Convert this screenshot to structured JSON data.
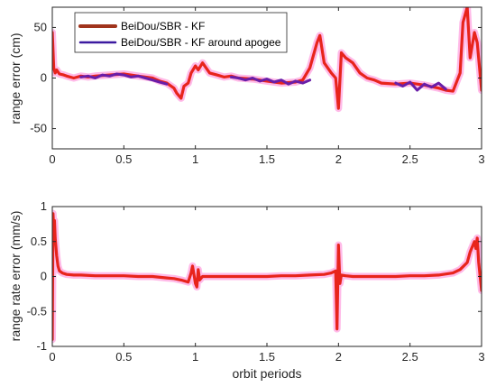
{
  "colors": {
    "series_main": "#e8241c",
    "series_apogee": "#6a1ea8",
    "legend_main_line": "#a0341c",
    "legend_apogee_line": "#3c1aa0",
    "glow": "#ff66cc",
    "axis": "#262626",
    "background": "#ffffff"
  },
  "chart_data": [
    {
      "type": "line",
      "title": "",
      "xlabel": "",
      "ylabel": "range error (cm)",
      "xlim": [
        0,
        3
      ],
      "ylim": [
        -70,
        70
      ],
      "xticks": [
        "0",
        "0.5",
        "1",
        "1.5",
        "2",
        "2.5",
        "3"
      ],
      "yticks": [
        "-50",
        "0",
        "50"
      ],
      "grid": false,
      "legend": {
        "placement": "top-left",
        "entries": [
          "BeiDou/SBR - KF",
          "BeiDou/SBR - KF around apogee"
        ]
      },
      "series": [
        {
          "name": "BeiDou/SBR - KF",
          "x": [
            0,
            0.01,
            0.02,
            0.03,
            0.05,
            0.08,
            0.1,
            0.15,
            0.2,
            0.25,
            0.3,
            0.4,
            0.5,
            0.6,
            0.7,
            0.75,
            0.8,
            0.85,
            0.87,
            0.9,
            0.92,
            0.95,
            0.97,
            1.0,
            1.02,
            1.05,
            1.1,
            1.15,
            1.2,
            1.25,
            1.3,
            1.4,
            1.5,
            1.6,
            1.7,
            1.75,
            1.8,
            1.85,
            1.87,
            1.9,
            1.95,
            1.98,
            2.0,
            2.02,
            2.05,
            2.1,
            2.15,
            2.2,
            2.25,
            2.3,
            2.4,
            2.5,
            2.6,
            2.7,
            2.75,
            2.8,
            2.85,
            2.87,
            2.9,
            2.92,
            2.95,
            2.97,
            3.0
          ],
          "y": [
            45,
            10,
            5,
            8,
            4,
            3,
            2,
            0,
            2,
            1,
            2,
            3,
            4,
            2,
            0,
            -3,
            -5,
            -10,
            -15,
            -20,
            -8,
            -5,
            5,
            12,
            8,
            15,
            5,
            3,
            1,
            2,
            0,
            -1,
            -3,
            -5,
            -4,
            -2,
            10,
            35,
            42,
            15,
            5,
            0,
            -30,
            25,
            20,
            15,
            5,
            0,
            -2,
            -5,
            -6,
            -5,
            -7,
            -10,
            -12,
            -13,
            5,
            55,
            70,
            20,
            45,
            35,
            -12
          ]
        },
        {
          "name": "BeiDou/SBR - KF around apogee",
          "segments": [
            {
              "x": [
                0.2,
                0.25,
                0.3,
                0.35,
                0.4,
                0.45,
                0.5,
                0.55,
                0.6,
                0.65,
                0.7,
                0.75,
                0.8
              ],
              "y": [
                1,
                2,
                0,
                3,
                2,
                4,
                3,
                1,
                2,
                0,
                -2,
                -4,
                -6
              ]
            },
            {
              "x": [
                1.25,
                1.3,
                1.35,
                1.4,
                1.45,
                1.5,
                1.55,
                1.6,
                1.65,
                1.7,
                1.75,
                1.8
              ],
              "y": [
                1,
                0,
                -2,
                0,
                -3,
                -1,
                -4,
                -2,
                -6,
                -3,
                -5,
                -2
              ]
            },
            {
              "x": [
                2.4,
                2.45,
                2.5,
                2.55,
                2.6,
                2.65,
                2.7,
                2.75
              ],
              "y": [
                -5,
                -8,
                -4,
                -12,
                -6,
                -9,
                -5,
                -11
              ]
            }
          ]
        }
      ]
    },
    {
      "type": "line",
      "title": "",
      "xlabel": "orbit periods",
      "ylabel": "range rate error (mm/s)",
      "xlim": [
        0,
        3
      ],
      "ylim": [
        -1,
        1
      ],
      "xticks": [
        "0",
        "0.5",
        "1",
        "1.5",
        "2",
        "2.5",
        "3"
      ],
      "yticks": [
        "-1",
        "-0.5",
        "0",
        "0.5",
        "1"
      ],
      "grid": false,
      "series": [
        {
          "name": "BeiDou/SBR - KF",
          "x": [
            0,
            0.005,
            0.01,
            0.015,
            0.02,
            0.03,
            0.04,
            0.05,
            0.07,
            0.1,
            0.15,
            0.2,
            0.3,
            0.4,
            0.5,
            0.6,
            0.7,
            0.8,
            0.85,
            0.9,
            0.95,
            0.97,
            0.98,
            1.0,
            1.01,
            1.02,
            1.03,
            1.05,
            1.1,
            1.2,
            1.3,
            1.4,
            1.5,
            1.6,
            1.7,
            1.8,
            1.9,
            1.95,
            1.98,
            1.99,
            2.0,
            2.01,
            2.02,
            2.05,
            2.1,
            2.2,
            2.3,
            2.4,
            2.5,
            2.6,
            2.7,
            2.8,
            2.85,
            2.9,
            2.92,
            2.94,
            2.95,
            2.96,
            2.97,
            2.98,
            3.0
          ],
          "y": [
            -0.9,
            0.9,
            0.7,
            0.8,
            0.55,
            0.3,
            0.15,
            0.08,
            0.05,
            0.03,
            0.02,
            0.02,
            0.01,
            0.01,
            0.01,
            0.0,
            0.0,
            -0.02,
            -0.03,
            -0.05,
            -0.08,
            0.05,
            0.15,
            -0.1,
            -0.15,
            0.1,
            -0.05,
            0.0,
            0.0,
            0.0,
            0.0,
            0.0,
            0.0,
            0.01,
            0.01,
            0.02,
            0.03,
            0.05,
            0.08,
            -0.75,
            0.45,
            -0.1,
            0.02,
            0.01,
            0.0,
            0.0,
            0.0,
            0.0,
            0.01,
            0.01,
            0.02,
            0.05,
            0.1,
            0.2,
            0.35,
            0.45,
            0.5,
            0.4,
            0.55,
            0.2,
            -0.2
          ]
        }
      ]
    }
  ]
}
